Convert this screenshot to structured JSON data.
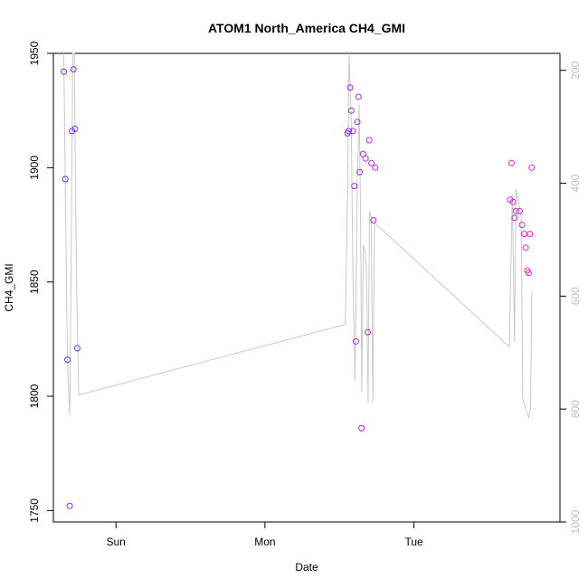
{
  "chart_data": {
    "type": "scatter",
    "title": "ATOM1 North_America CH4_GMI",
    "xlabel": "Date",
    "ylabel": "CH4_GMI",
    "x_unit": "days",
    "x_ticks": [
      {
        "x": 1.0,
        "label": "Sun"
      },
      {
        "x": 2.0,
        "label": "Mon"
      },
      {
        "x": 3.0,
        "label": "Tue"
      }
    ],
    "xlim": [
      0.58,
      3.98
    ],
    "ylim": [
      1745,
      1950
    ],
    "y_ticks": [
      1750,
      1800,
      1850,
      1900,
      1950
    ],
    "y2_label": "",
    "y2lim": [
      1000,
      170
    ],
    "y2_ticks": [
      200,
      400,
      600,
      800,
      1000
    ],
    "legend": "none",
    "grid": false,
    "series": [
      {
        "kind": "points",
        "color_start": "#6a2cff",
        "color_end": "#ff22cc",
        "points": [
          {
            "x": 0.65,
            "y": 1942
          },
          {
            "x": 0.66,
            "y": 1895
          },
          {
            "x": 0.675,
            "y": 1816
          },
          {
            "x": 0.69,
            "y": 1752
          },
          {
            "x": 0.705,
            "y": 1916
          },
          {
            "x": 0.715,
            "y": 1943
          },
          {
            "x": 0.725,
            "y": 1917
          },
          {
            "x": 0.74,
            "y": 1821
          },
          {
            "x": 2.554,
            "y": 1915
          },
          {
            "x": 2.562,
            "y": 1916
          },
          {
            "x": 2.572,
            "y": 1935
          },
          {
            "x": 2.58,
            "y": 1925
          },
          {
            "x": 2.59,
            "y": 1916
          },
          {
            "x": 2.6,
            "y": 1892
          },
          {
            "x": 2.61,
            "y": 1824
          },
          {
            "x": 2.62,
            "y": 1920
          },
          {
            "x": 2.628,
            "y": 1931
          },
          {
            "x": 2.636,
            "y": 1898
          },
          {
            "x": 2.648,
            "y": 1786
          },
          {
            "x": 2.658,
            "y": 1906
          },
          {
            "x": 2.675,
            "y": 1904
          },
          {
            "x": 2.69,
            "y": 1828
          },
          {
            "x": 2.7,
            "y": 1912
          },
          {
            "x": 2.715,
            "y": 1902
          },
          {
            "x": 2.728,
            "y": 1877
          },
          {
            "x": 2.74,
            "y": 1900
          },
          {
            "x": 3.645,
            "y": 1886
          },
          {
            "x": 3.655,
            "y": 1902
          },
          {
            "x": 3.665,
            "y": 1885
          },
          {
            "x": 3.675,
            "y": 1878
          },
          {
            "x": 3.685,
            "y": 1881
          },
          {
            "x": 3.71,
            "y": 1881
          },
          {
            "x": 3.725,
            "y": 1875
          },
          {
            "x": 3.74,
            "y": 1871
          },
          {
            "x": 3.75,
            "y": 1865
          },
          {
            "x": 3.76,
            "y": 1855
          },
          {
            "x": 3.77,
            "y": 1854
          },
          {
            "x": 3.778,
            "y": 1871
          },
          {
            "x": 3.79,
            "y": 1900
          }
        ]
      },
      {
        "kind": "line",
        "axis": "right",
        "color": "#c8c8c8",
        "points": [
          {
            "x": 0.65,
            "y": 170
          },
          {
            "x": 0.66,
            "y": 410
          },
          {
            "x": 0.675,
            "y": 720
          },
          {
            "x": 0.69,
            "y": 810
          },
          {
            "x": 0.7,
            "y": 520
          },
          {
            "x": 0.71,
            "y": 170
          },
          {
            "x": 0.72,
            "y": 170
          },
          {
            "x": 0.735,
            "y": 560
          },
          {
            "x": 0.75,
            "y": 775
          },
          {
            "x": 2.54,
            "y": 650
          },
          {
            "x": 2.555,
            "y": 400
          },
          {
            "x": 2.565,
            "y": 170
          },
          {
            "x": 2.58,
            "y": 300
          },
          {
            "x": 2.59,
            "y": 560
          },
          {
            "x": 2.605,
            "y": 750
          },
          {
            "x": 2.62,
            "y": 400
          },
          {
            "x": 2.632,
            "y": 260
          },
          {
            "x": 2.642,
            "y": 450
          },
          {
            "x": 2.65,
            "y": 770
          },
          {
            "x": 2.66,
            "y": 510
          },
          {
            "x": 2.672,
            "y": 520
          },
          {
            "x": 2.682,
            "y": 560
          },
          {
            "x": 2.692,
            "y": 790
          },
          {
            "x": 2.702,
            "y": 450
          },
          {
            "x": 2.714,
            "y": 460
          },
          {
            "x": 2.724,
            "y": 790
          },
          {
            "x": 2.736,
            "y": 470
          },
          {
            "x": 3.64,
            "y": 690
          },
          {
            "x": 3.65,
            "y": 560
          },
          {
            "x": 3.66,
            "y": 420
          },
          {
            "x": 3.675,
            "y": 680
          },
          {
            "x": 3.685,
            "y": 410
          },
          {
            "x": 3.7,
            "y": 430
          },
          {
            "x": 3.72,
            "y": 460
          },
          {
            "x": 3.73,
            "y": 780
          },
          {
            "x": 3.75,
            "y": 800
          },
          {
            "x": 3.77,
            "y": 815
          },
          {
            "x": 3.782,
            "y": 800
          },
          {
            "x": 3.792,
            "y": 590
          }
        ]
      }
    ]
  }
}
